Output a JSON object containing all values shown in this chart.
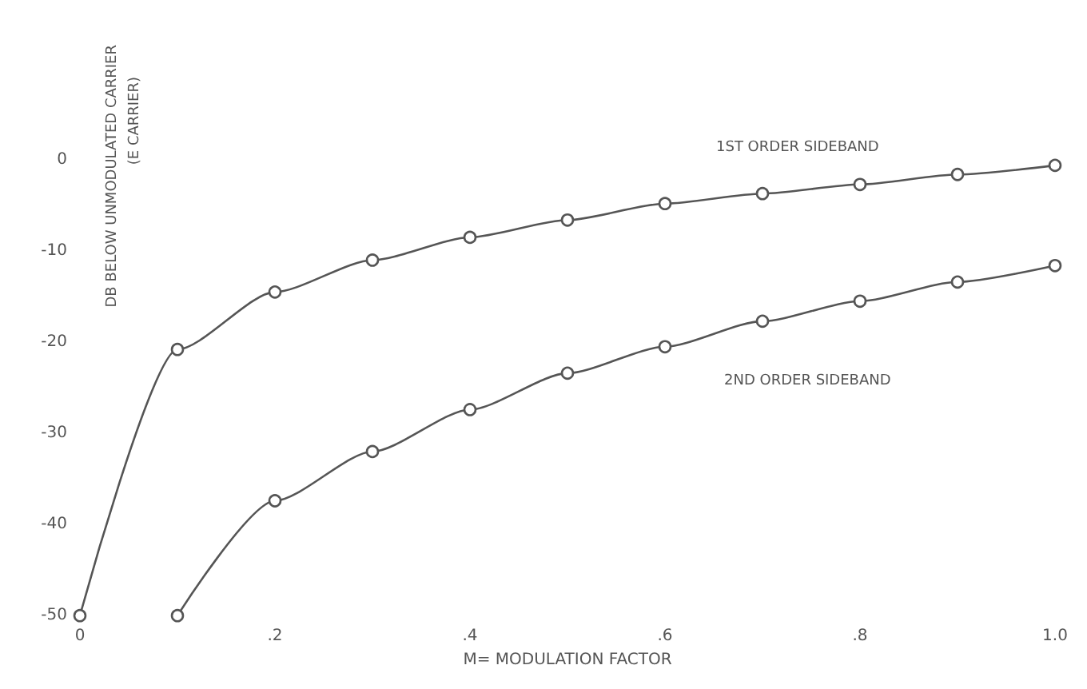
{
  "chart_data": {
    "type": "line",
    "xlabel": "M= MODULATION FACTOR",
    "ylabel": "DB BELOW UNMODULATED CARRIER\n(E CARRIER)",
    "series": [
      {
        "color": "#555555",
        "x": [
          0,
          0.1,
          0.2,
          0.3,
          0.4,
          0.5,
          0.6,
          0.7,
          0.8,
          0.9,
          1.0
        ],
        "values": [
          -50,
          -20.8,
          -14.5,
          -11,
          -8.5,
          -6.6,
          -4.8,
          -3.7,
          -2.7,
          -1.6,
          -0.6
        ]
      },
      {
        "color": "#555555",
        "x": [
          0.1,
          0.2,
          0.3,
          0.4,
          0.5,
          0.6,
          0.7,
          0.8,
          0.9,
          1.0
        ],
        "values": [
          -50,
          -37.4,
          -32,
          -27.4,
          -23.4,
          -20.5,
          -17.7,
          -15.5,
          -13.4,
          -11.6
        ]
      }
    ],
    "annotations": [
      "1ST ORDER SIDEBAND",
      "2ND ORDER SIDEBAND"
    ],
    "xlim": [
      0,
      1
    ],
    "xticks": [
      {
        "value": 0,
        "label": "0"
      },
      {
        "value": 0.2,
        "label": ".2"
      },
      {
        "value": 0.4,
        "label": ".4"
      },
      {
        "value": 0.6,
        "label": ".6"
      },
      {
        "value": 0.8,
        "label": ".8"
      },
      {
        "value": 1,
        "label": "1.0"
      }
    ],
    "ylim": [
      -50,
      0
    ],
    "yticks": [
      0,
      -10,
      -20,
      -30,
      -40,
      -50
    ],
    "grid": false,
    "marker": "circle",
    "line_style": "solid"
  }
}
